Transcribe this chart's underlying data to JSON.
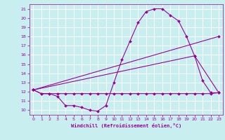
{
  "xlabel": "Windchill (Refroidissement éolien,°C)",
  "bg_color": "#c8eef0",
  "grid_color": "#ffffff",
  "line_color": "#990099",
  "xlim": [
    -0.5,
    23.5
  ],
  "ylim": [
    9.5,
    21.5
  ],
  "xticks": [
    0,
    1,
    2,
    3,
    4,
    5,
    6,
    7,
    8,
    9,
    10,
    11,
    12,
    13,
    14,
    15,
    16,
    17,
    18,
    19,
    20,
    21,
    22,
    23
  ],
  "yticks": [
    10,
    11,
    12,
    13,
    14,
    15,
    16,
    17,
    18,
    19,
    20,
    21
  ],
  "curve1_x": [
    0,
    1,
    2,
    3,
    4,
    5,
    6,
    7,
    8,
    9,
    10,
    11,
    12,
    13,
    14,
    15,
    16,
    17,
    18,
    19,
    20,
    21,
    22,
    23
  ],
  "curve1_y": [
    12.2,
    11.8,
    11.8,
    11.5,
    10.5,
    10.5,
    10.3,
    10.0,
    9.9,
    10.5,
    13.0,
    15.5,
    17.5,
    19.5,
    20.7,
    21.0,
    21.0,
    20.3,
    19.7,
    18.0,
    15.9,
    13.2,
    11.9,
    11.9
  ],
  "curve2_x": [
    0,
    1,
    2,
    3,
    4,
    5,
    6,
    7,
    8,
    9,
    10,
    11,
    12,
    13,
    14,
    15,
    16,
    17,
    18,
    19,
    20,
    21,
    22,
    23
  ],
  "curve2_y": [
    12.2,
    11.8,
    11.8,
    11.8,
    11.8,
    11.8,
    11.8,
    11.8,
    11.8,
    11.8,
    11.8,
    11.8,
    11.8,
    11.8,
    11.8,
    11.8,
    11.8,
    11.8,
    11.8,
    11.8,
    11.8,
    11.8,
    11.8,
    11.9
  ],
  "curve3_x": [
    0,
    23
  ],
  "curve3_y": [
    12.2,
    18.0
  ],
  "curve4_x": [
    0,
    20,
    23
  ],
  "curve4_y": [
    12.2,
    15.9,
    11.9
  ]
}
